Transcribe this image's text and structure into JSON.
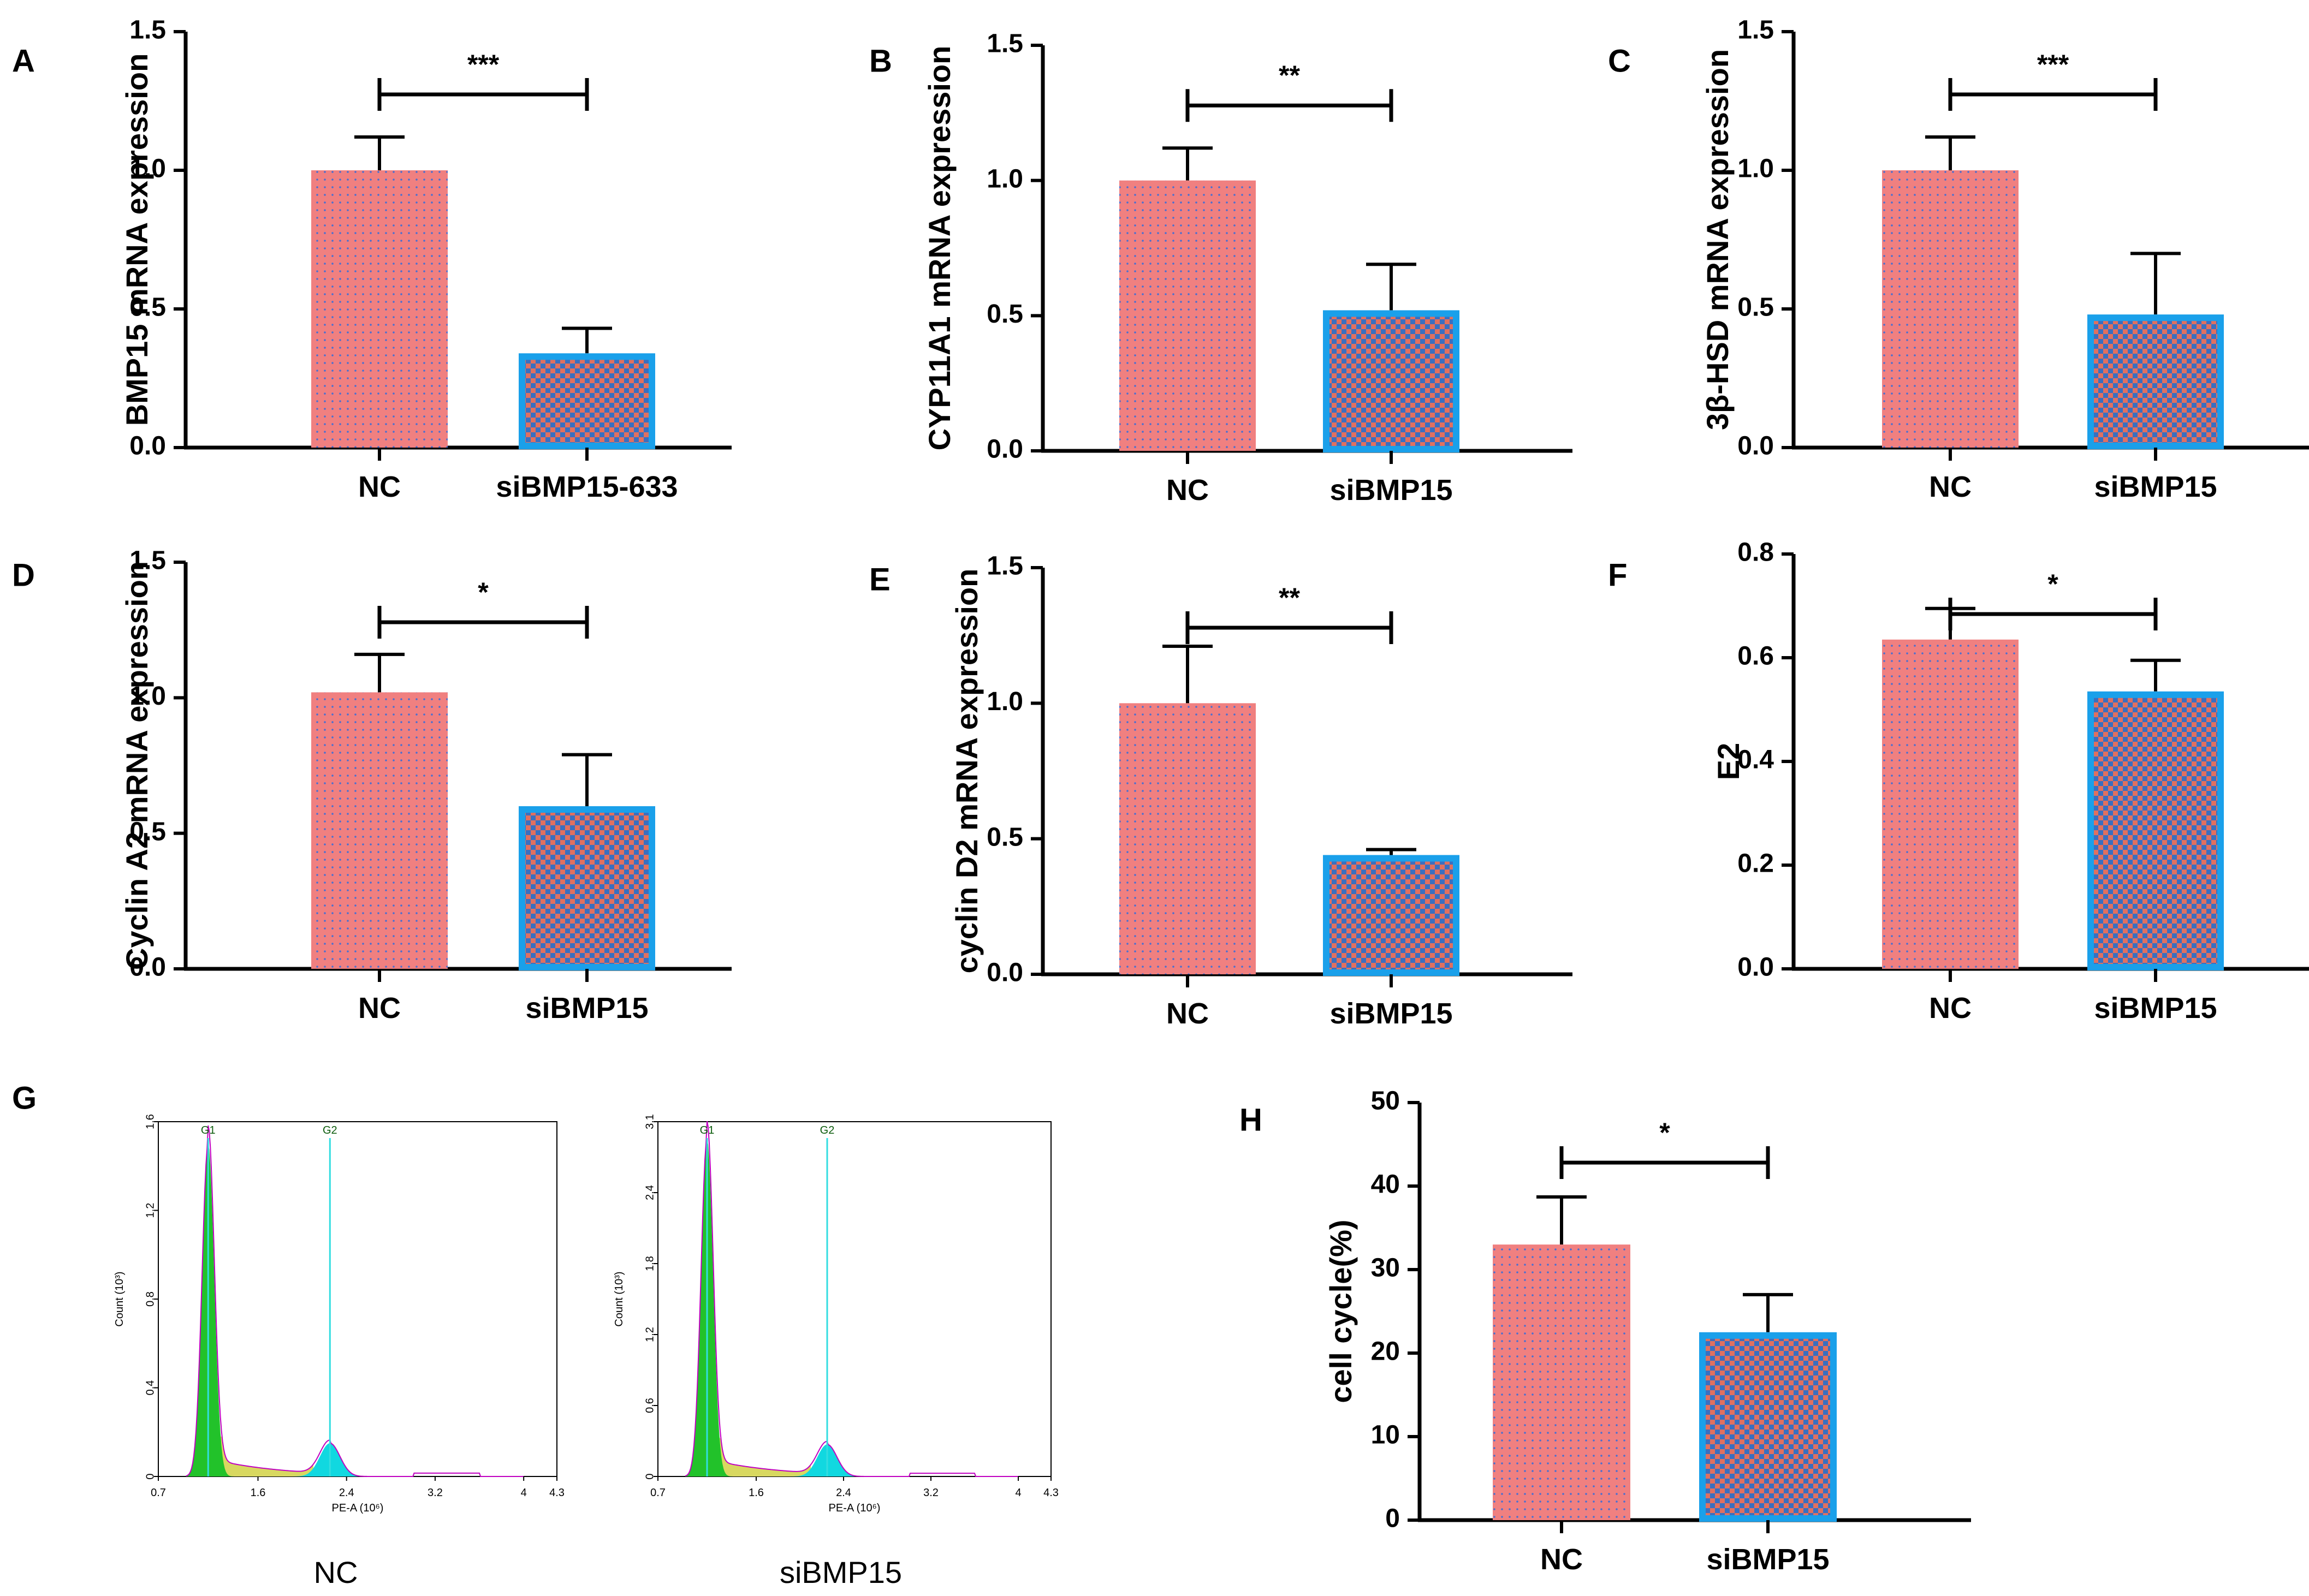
{
  "colors": {
    "nc_fill": "#F08080",
    "nc_dot": "#4a6fd0",
    "si_fill": "#E07060",
    "si_check": "#3a6fc0",
    "si_border": "#1aa0ea",
    "g1_fill": "#22c22a",
    "s_fill": "#d8d860",
    "g2_fill": "#11d8e0",
    "gate_line": "#33dde0",
    "outline": "#c000c0"
  },
  "chart_data": [
    {
      "panel": "A",
      "type": "bar",
      "categories": [
        "NC",
        "siBMP15-633"
      ],
      "values": [
        1.0,
        0.34
      ],
      "errors": [
        0.12,
        0.09
      ],
      "ylabel": "BMP15 mRNA expression",
      "ylim": [
        0,
        1.5
      ],
      "yticks": [
        "0.0",
        "0.5",
        "1.0",
        "1.5"
      ],
      "significance": "***"
    },
    {
      "panel": "B",
      "type": "bar",
      "categories": [
        "NC",
        "siBMP15"
      ],
      "values": [
        1.0,
        0.52
      ],
      "errors": [
        0.12,
        0.17
      ],
      "ylabel": "CYP11A1 mRNA expression",
      "ylim": [
        0,
        1.5
      ],
      "yticks": [
        "0.0",
        "0.5",
        "1.0",
        "1.5"
      ],
      "significance": "**"
    },
    {
      "panel": "C",
      "type": "bar",
      "categories": [
        "NC",
        "siBMP15"
      ],
      "values": [
        1.0,
        0.48
      ],
      "errors": [
        0.12,
        0.22
      ],
      "ylabel": "3β-HSD mRNA expression",
      "ylim": [
        0,
        1.5
      ],
      "yticks": [
        "0.0",
        "0.5",
        "1.0",
        "1.5"
      ],
      "significance": "***"
    },
    {
      "panel": "D",
      "type": "bar",
      "categories": [
        "NC",
        "siBMP15"
      ],
      "values": [
        1.02,
        0.6
      ],
      "errors": [
        0.14,
        0.19
      ],
      "ylabel": "Cyclin A2 mRNA expression",
      "ylim": [
        0,
        1.5
      ],
      "yticks": [
        "0.0",
        "0.5",
        "1.0",
        "1.5"
      ],
      "significance": "*"
    },
    {
      "panel": "E",
      "type": "bar",
      "categories": [
        "NC",
        "siBMP15"
      ],
      "values": [
        1.0,
        0.44
      ],
      "errors": [
        0.21,
        0.02
      ],
      "ylabel": "cyclin D2 mRNA expression",
      "ylim": [
        0,
        1.5
      ],
      "yticks": [
        "0.0",
        "0.5",
        "1.0",
        "1.5"
      ],
      "significance": "**"
    },
    {
      "panel": "F",
      "type": "bar",
      "categories": [
        "NC",
        "siBMP15"
      ],
      "values": [
        0.635,
        0.535
      ],
      "errors": [
        0.06,
        0.06
      ],
      "ylabel": "E2",
      "ylim": [
        0,
        0.8
      ],
      "yticks": [
        "0.0",
        "0.2",
        "0.4",
        "0.6",
        "0.8"
      ],
      "significance": "*"
    },
    {
      "panel": "H",
      "type": "bar",
      "categories": [
        "NC",
        "siBMP15"
      ],
      "values": [
        33.0,
        22.5
      ],
      "errors": [
        5.7,
        4.5
      ],
      "ylabel": "cell cycle(%)",
      "ylim": [
        0,
        50
      ],
      "yticks": [
        "0",
        "10",
        "20",
        "30",
        "40",
        "50"
      ],
      "significance": "*"
    },
    {
      "panel": "G",
      "type": "area",
      "histograms": [
        {
          "caption": "NC",
          "xlabel": "PE-A (10⁶)",
          "ylabel": "Count (10³)",
          "xticks": [
            "0.7",
            "1.6",
            "2.4",
            "3.2",
            "4",
            "4.3"
          ],
          "yticks": [
            "0",
            "0.4",
            "0.8",
            "1.2",
            "1.6"
          ],
          "ymax": 1.6,
          "gates": [
            "G1",
            "G2"
          ],
          "g1_peak": 1.5,
          "g2_peak": 0.15
        },
        {
          "caption": "siBMP15",
          "xlabel": "PE-A (10⁶)",
          "ylabel": "Count (10³)",
          "xticks": [
            "0.7",
            "1.6",
            "2.4",
            "3.2",
            "4",
            "4.3"
          ],
          "yticks": [
            "0",
            "0.6",
            "1.2",
            "1.8",
            "2.4",
            "3.1"
          ],
          "ymax": 3.1,
          "gates": [
            "G1",
            "G2"
          ],
          "g1_peak": 2.95,
          "g2_peak": 0.28
        }
      ]
    }
  ]
}
